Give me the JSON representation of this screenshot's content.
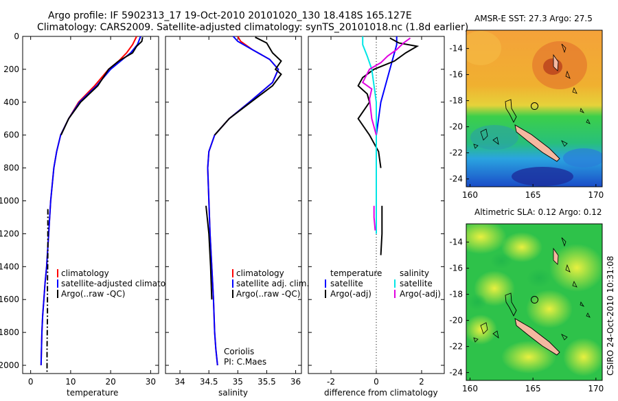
{
  "header": {
    "line1": "Argo profile: IF 5902313_17 19-Oct-2010 20101020_130 18.418S 165.127E",
    "line2": "Climatology: CARS2009. Satellite-adjusted climatology: synTS_20101018.nc (1.8d earlier)"
  },
  "colors": {
    "climatology": "#ff0000",
    "satellite_adjusted": "#0000ff",
    "argo": "#000000",
    "satellite": "#00e5e5",
    "argo_adj": "#e000e0",
    "land": "#f5b8a0"
  },
  "chart_data": [
    {
      "type": "line",
      "id": "temperature",
      "xlabel": "temperature",
      "xlim": [
        -2,
        32
      ],
      "ylim": [
        2050,
        0
      ],
      "xticks": [
        0,
        10,
        20,
        30
      ],
      "yticks": [
        0,
        200,
        400,
        600,
        800,
        1000,
        1200,
        1400,
        1600,
        1800,
        2000
      ],
      "legend": [
        "climatology",
        "satellite-adjusted climatology",
        "Argo(..raw -QC)"
      ],
      "series": [
        {
          "name": "climatology",
          "color": "#ff0000",
          "x": [
            26.5,
            25.5,
            24.0,
            22.0,
            19.5,
            16.0,
            12.0,
            9.5,
            7.5,
            6.5,
            5.8,
            5.0,
            4.5,
            4.0,
            3.6,
            3.3,
            3.0,
            2.8,
            2.6
          ],
          "y": [
            0,
            50,
            100,
            150,
            200,
            300,
            400,
            500,
            600,
            700,
            800,
            1000,
            1200,
            1400,
            1500,
            1600,
            1700,
            1800,
            2000
          ]
        },
        {
          "name": "satellite-adjusted climatology",
          "color": "#0000ff",
          "x": [
            27.5,
            26.7,
            25.0,
            22.5,
            20.0,
            16.5,
            12.2,
            9.5,
            7.5,
            6.5,
            5.8,
            5.0,
            4.5,
            4.0,
            3.6,
            3.3,
            3.0,
            2.8,
            2.6
          ],
          "y": [
            0,
            50,
            100,
            150,
            200,
            300,
            400,
            500,
            600,
            700,
            800,
            1000,
            1200,
            1400,
            1500,
            1600,
            1700,
            1800,
            2000
          ]
        },
        {
          "name": "Argo(..raw -QC)",
          "color": "#000000",
          "x": [
            28.0,
            27.8,
            26.5,
            25.5,
            22.0,
            19.5,
            16.8,
            12.5,
            9.5,
            7.6
          ],
          "y": [
            5,
            30,
            60,
            100,
            150,
            200,
            300,
            400,
            500,
            600
          ]
        },
        {
          "name": "Argo deep",
          "color": "#000000",
          "dashed": true,
          "x": [
            4.3,
            4.3,
            4.2,
            4.2,
            4.1,
            4.1
          ],
          "y": [
            1050,
            1300,
            1500,
            1700,
            1900,
            2040
          ]
        }
      ]
    },
    {
      "type": "line",
      "id": "salinity",
      "xlabel": "salinity",
      "xlim": [
        33.75,
        36.1
      ],
      "ylim": [
        2050,
        0
      ],
      "xticks": [
        34,
        34.5,
        35,
        35.5,
        36
      ],
      "legend": [
        "climatology",
        "satellite adj. clim.",
        "Argo(..raw -QC)"
      ],
      "annotation": [
        "Coriolis",
        "PI: C.Maes"
      ],
      "series": [
        {
          "name": "climatology",
          "color": "#ff0000",
          "x": [
            35.0,
            35.05,
            35.25,
            35.55,
            35.7,
            35.6,
            35.2,
            34.85,
            34.6,
            34.5,
            34.48,
            34.5,
            34.52,
            34.55,
            34.58,
            34.6,
            34.62,
            34.65
          ],
          "y": [
            0,
            30,
            80,
            140,
            200,
            280,
            400,
            500,
            600,
            700,
            800,
            1000,
            1200,
            1400,
            1600,
            1800,
            1900,
            2000
          ]
        },
        {
          "name": "satellite adj. clim.",
          "color": "#0000ff",
          "x": [
            34.92,
            35.0,
            35.25,
            35.55,
            35.7,
            35.6,
            35.2,
            34.85,
            34.6,
            34.5,
            34.48,
            34.5,
            34.52,
            34.55,
            34.58,
            34.6,
            34.62,
            34.65
          ],
          "y": [
            0,
            30,
            80,
            140,
            200,
            280,
            400,
            500,
            600,
            700,
            800,
            1000,
            1200,
            1400,
            1600,
            1800,
            1900,
            2000
          ]
        },
        {
          "name": "Argo(..raw -QC)",
          "color": "#000000",
          "x": [
            35.3,
            35.5,
            35.6,
            35.75,
            35.65,
            35.75,
            35.6,
            35.15,
            34.85,
            34.6
          ],
          "y": [
            5,
            40,
            100,
            150,
            200,
            230,
            300,
            420,
            500,
            600
          ]
        },
        {
          "name": "Argo deep",
          "color": "#000000",
          "x": [
            34.45,
            34.5,
            34.53,
            34.55
          ],
          "y": [
            1030,
            1200,
            1400,
            1600
          ]
        }
      ]
    },
    {
      "type": "line",
      "id": "difference",
      "xlabel": "difference from climatology",
      "xlim": [
        -3.0,
        3.0
      ],
      "ylim": [
        2050,
        0
      ],
      "xticks": [
        -2,
        0,
        2
      ],
      "legend_temperature_title": "temperature",
      "legend_salinity_title": "salinity",
      "legend_temperature": [
        "satellite",
        "Argo(-adj)"
      ],
      "legend_salinity": [
        "satellite",
        "Argo(-adj)"
      ],
      "series": [
        {
          "name": "temperature satellite",
          "color": "#0000ff",
          "x": [
            0.9,
            0.9,
            0.8,
            0.6,
            0.4,
            0.2,
            0.1,
            0.0,
            0.0,
            0.0,
            0.0
          ],
          "y": [
            0,
            50,
            100,
            200,
            300,
            400,
            500,
            600,
            800,
            1000,
            1200
          ]
        },
        {
          "name": "temperature Argo(-adj)",
          "color": "#000000",
          "x": [
            0.6,
            1.0,
            1.8,
            1.3,
            0.8,
            -0.1,
            -0.6,
            -0.8,
            -0.4,
            -0.3,
            -0.8,
            -0.3,
            0.1,
            0.2
          ],
          "y": [
            10,
            40,
            60,
            100,
            150,
            200,
            250,
            300,
            350,
            400,
            500,
            600,
            700,
            800
          ]
        },
        {
          "name": "temperature Argo deep",
          "color": "#000000",
          "x": [
            0.25,
            0.25,
            0.2
          ],
          "y": [
            1030,
            1200,
            1330
          ]
        },
        {
          "name": "salinity satellite",
          "color": "#00e5e5",
          "x": [
            -0.6,
            -0.6,
            -0.4,
            -0.2,
            -0.1,
            0.0,
            0.0,
            0.0,
            0.0,
            0.0
          ],
          "y": [
            0,
            50,
            120,
            200,
            300,
            400,
            500,
            700,
            900,
            1200
          ]
        },
        {
          "name": "salinity Argo(-adj)",
          "color": "#e000e0",
          "x": [
            1.5,
            1.2,
            0.9,
            0.5,
            0.2,
            -0.3,
            -0.6,
            -0.2,
            -0.3,
            -0.2,
            0.0
          ],
          "y": [
            10,
            40,
            80,
            120,
            160,
            200,
            280,
            320,
            380,
            500,
            600
          ]
        },
        {
          "name": "salinity Argo deep",
          "color": "#e000e0",
          "x": [
            -0.1,
            -0.1,
            -0.05
          ],
          "y": [
            1030,
            1100,
            1180
          ]
        }
      ]
    },
    {
      "type": "heatmap",
      "id": "sst-map",
      "title": "AMSR-E SST: 27.3 Argo: 27.5",
      "xlim": [
        159.7,
        170.5
      ],
      "ylim": [
        -24.6,
        -12.6
      ],
      "xticks": [
        160,
        165,
        170
      ],
      "yticks": [
        -14,
        -16,
        -18,
        -20,
        -22,
        -24
      ],
      "argo_position": [
        165.127,
        -18.418
      ]
    },
    {
      "type": "heatmap",
      "id": "sla-map",
      "title": "Altimetric SLA: 0.12 Argo: 0.12",
      "xlim": [
        159.7,
        170.5
      ],
      "ylim": [
        -24.6,
        -12.6
      ],
      "xticks": [
        160,
        165,
        170
      ],
      "yticks": [
        -14,
        -16,
        -18,
        -20,
        -22,
        -24
      ],
      "argo_position": [
        165.127,
        -18.418
      ]
    }
  ],
  "side_stamp": "CSIRO 24-Oct-2010 10:31:08"
}
